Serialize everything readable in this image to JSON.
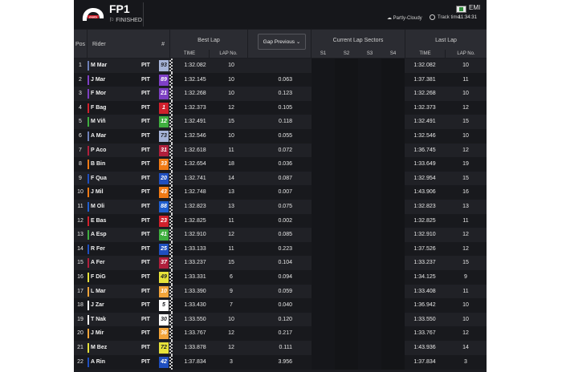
{
  "header": {
    "session": "FP1",
    "status": "FINISHED",
    "circuit": "EMI",
    "weather": "Partly-Cloudy",
    "track_time_label": "Track time",
    "track_time": "11:34:31",
    "logo_icon": "motogp-logo-icon",
    "flag_icon": "flag-icon"
  },
  "columns": {
    "pos": "Pos",
    "rider": "Rider",
    "number": "#",
    "best_lap": "Best Lap",
    "gap": "Gap Previous",
    "sectors": "Current Lap Sectors",
    "last_lap": "Last Lap",
    "time": "TIME",
    "lap_no": "LAP No.",
    "s1": "S1",
    "s2": "S2",
    "s3": "S3",
    "s4": "S4"
  },
  "rows": [
    {
      "pos": "1",
      "rider": "M Mar",
      "pit": "PIT",
      "num": "93",
      "num_bg": "#a6b4d8",
      "num_fg": "#1c1d22",
      "bar": "#6d7fb8",
      "best": "1:32.082",
      "best_lap": "10",
      "gap": "",
      "last": "1:32.082",
      "last_lap": "10"
    },
    {
      "pos": "2",
      "rider": "J Mar",
      "pit": "PIT",
      "num": "89",
      "num_bg": "#7f3fc6",
      "num_fg": "#ffffff",
      "bar": "#7f3fc6",
      "best": "1:32.145",
      "best_lap": "10",
      "gap": "0.063",
      "last": "1:37.381",
      "last_lap": "11"
    },
    {
      "pos": "3",
      "rider": "F Mor",
      "pit": "PIT",
      "num": "21",
      "num_bg": "#7c3fc2",
      "num_fg": "#ffffff",
      "bar": "#7c3fc2",
      "best": "1:32.268",
      "best_lap": "10",
      "gap": "0.123",
      "last": "1:32.268",
      "last_lap": "10"
    },
    {
      "pos": "4",
      "rider": "F Bag",
      "pit": "PIT",
      "num": "1",
      "num_bg": "#d0202c",
      "num_fg": "#ffffff",
      "bar": "#d0202c",
      "best": "1:32.373",
      "best_lap": "12",
      "gap": "0.105",
      "last": "1:32.373",
      "last_lap": "12"
    },
    {
      "pos": "5",
      "rider": "M Viñ",
      "pit": "PIT",
      "num": "12",
      "num_bg": "#3fae3f",
      "num_fg": "#ffffff",
      "bar": "#3fae3f",
      "best": "1:32.491",
      "best_lap": "15",
      "gap": "0.118",
      "last": "1:32.491",
      "last_lap": "15"
    },
    {
      "pos": "6",
      "rider": "A Mar",
      "pit": "PIT",
      "num": "73",
      "num_bg": "#a6b4d8",
      "num_fg": "#1c1d22",
      "bar": "#6d7fb8",
      "best": "1:32.546",
      "last": "1:32.546",
      "best_lap": "10",
      "gap": "0.055",
      "last_lap": "10"
    },
    {
      "pos": "7",
      "rider": "P Aco",
      "pit": "PIT",
      "num": "31",
      "num_bg": "#b01f3c",
      "num_fg": "#ffffff",
      "bar": "#b01f3c",
      "best": "1:32.618",
      "best_lap": "11",
      "gap": "0.072",
      "last": "1:36.745",
      "last_lap": "12"
    },
    {
      "pos": "8",
      "rider": "B Bin",
      "pit": "PIT",
      "num": "33",
      "num_bg": "#f07a14",
      "num_fg": "#ffffff",
      "bar": "#f07a14",
      "best": "1:32.654",
      "best_lap": "18",
      "gap": "0.036",
      "last": "1:33.649",
      "last_lap": "19"
    },
    {
      "pos": "9",
      "rider": "F Qua",
      "pit": "PIT",
      "num": "20",
      "num_bg": "#1f4fbf",
      "num_fg": "#ffffff",
      "bar": "#1f4fbf",
      "best": "1:32.741",
      "best_lap": "14",
      "gap": "0.087",
      "last": "1:32.954",
      "last_lap": "15"
    },
    {
      "pos": "10",
      "rider": "J Mil",
      "pit": "PIT",
      "num": "43",
      "num_bg": "#f07a14",
      "num_fg": "#ffffff",
      "bar": "#f07a14",
      "best": "1:32.748",
      "best_lap": "13",
      "gap": "0.007",
      "last": "1:43.906",
      "last_lap": "16"
    },
    {
      "pos": "11",
      "rider": "M Oli",
      "pit": "PIT",
      "num": "88",
      "num_bg": "#1f5fd0",
      "num_fg": "#ffffff",
      "bar": "#1f5fd0",
      "best": "1:32.823",
      "best_lap": "13",
      "gap": "0.075",
      "last": "1:32.823",
      "last_lap": "13"
    },
    {
      "pos": "12",
      "rider": "E Bas",
      "pit": "PIT",
      "num": "23",
      "num_bg": "#d0202c",
      "num_fg": "#ffffff",
      "bar": "#d0202c",
      "best": "1:32.825",
      "best_lap": "11",
      "gap": "0.002",
      "last": "1:32.825",
      "last_lap": "11"
    },
    {
      "pos": "13",
      "rider": "A Esp",
      "pit": "PIT",
      "num": "41",
      "num_bg": "#3fae3f",
      "num_fg": "#ffffff",
      "bar": "#3fae3f",
      "best": "1:32.910",
      "best_lap": "12",
      "gap": "0.085",
      "last": "1:32.910",
      "last_lap": "12"
    },
    {
      "pos": "14",
      "rider": "R Fer",
      "pit": "PIT",
      "num": "25",
      "num_bg": "#1f4fbf",
      "num_fg": "#ffffff",
      "bar": "#1f4fbf",
      "best": "1:33.133",
      "best_lap": "11",
      "gap": "0.223",
      "last": "1:37.526",
      "last_lap": "12"
    },
    {
      "pos": "15",
      "rider": "A Fer",
      "pit": "PIT",
      "num": "37",
      "num_bg": "#b01f3c",
      "num_fg": "#ffffff",
      "bar": "#b01f3c",
      "best": "1:33.237",
      "best_lap": "15",
      "gap": "0.104",
      "last": "1:33.237",
      "last_lap": "15"
    },
    {
      "pos": "16",
      "rider": "F DiG",
      "pit": "PIT",
      "num": "49",
      "num_bg": "#e6e23a",
      "num_fg": "#1c1d22",
      "bar": "#e6e23a",
      "best": "1:33.331",
      "best_lap": "6",
      "gap": "0.094",
      "last": "1:34.125",
      "last_lap": "9"
    },
    {
      "pos": "17",
      "rider": "L Mar",
      "pit": "PIT",
      "num": "10",
      "num_bg": "#f2a43a",
      "num_fg": "#ffffff",
      "bar": "#f2a43a",
      "best": "1:33.390",
      "best_lap": "9",
      "gap": "0.059",
      "last": "1:33.408",
      "last_lap": "11"
    },
    {
      "pos": "18",
      "rider": "J Zar",
      "pit": "PIT",
      "num": "5",
      "num_bg": "#ffffff",
      "num_fg": "#1c1d22",
      "bar": "#ffffff",
      "best": "1:33.430",
      "best_lap": "7",
      "gap": "0.040",
      "last": "1:36.942",
      "last_lap": "10"
    },
    {
      "pos": "19",
      "rider": "T Nak",
      "pit": "PIT",
      "num": "30",
      "num_bg": "#ffffff",
      "num_fg": "#1c1d22",
      "bar": "#ffffff",
      "best": "1:33.550",
      "best_lap": "10",
      "gap": "0.120",
      "last": "1:33.550",
      "last_lap": "10"
    },
    {
      "pos": "20",
      "rider": "J Mir",
      "pit": "PIT",
      "num": "36",
      "num_bg": "#f2a43a",
      "num_fg": "#ffffff",
      "bar": "#f2a43a",
      "best": "1:33.767",
      "best_lap": "12",
      "gap": "0.217",
      "last": "1:33.767",
      "last_lap": "12"
    },
    {
      "pos": "21",
      "rider": "M Bez",
      "pit": "PIT",
      "num": "72",
      "num_bg": "#e6e23a",
      "num_fg": "#1c1d22",
      "bar": "#e6e23a",
      "best": "1:33.878",
      "best_lap": "12",
      "gap": "0.111",
      "last": "1:43.936",
      "last_lap": "14"
    },
    {
      "pos": "22",
      "rider": "A Rin",
      "pit": "PIT",
      "num": "42",
      "num_bg": "#1f4fbf",
      "num_fg": "#ffffff",
      "bar": "#1f4fbf",
      "best": "1:37.834",
      "best_lap": "3",
      "gap": "3.956",
      "last": "1:37.834",
      "last_lap": "3"
    }
  ],
  "colors": {
    "bg": "#1c1d22",
    "row_a": "#202126",
    "row_b": "#18191d",
    "header": "#2b2c32",
    "sector_bg": "#15161a"
  }
}
